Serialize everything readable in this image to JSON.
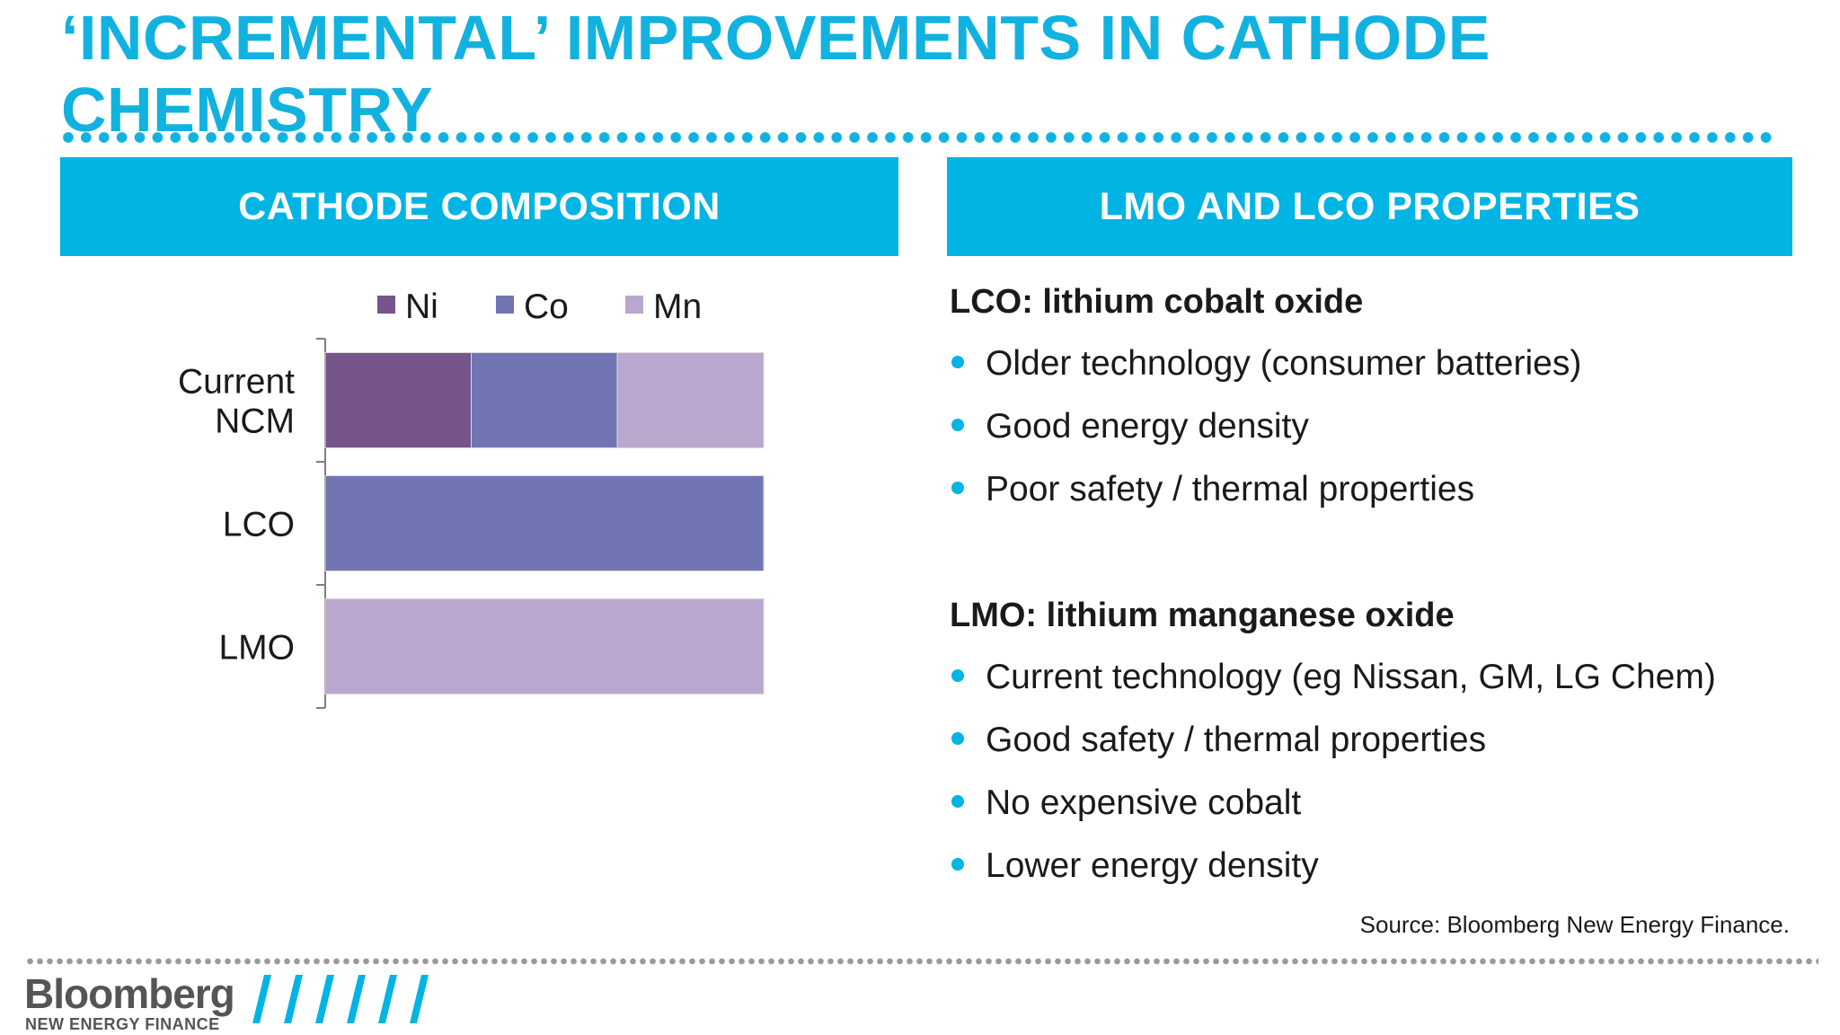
{
  "slide": {
    "title": "‘INCREMENTAL’ IMPROVEMENTS IN CATHODE CHEMISTRY"
  },
  "left_panel": {
    "header": "CATHODE COMPOSITION"
  },
  "right_panel": {
    "header": "LMO AND LCO PROPERTIES",
    "sections": [
      {
        "heading": "LCO: lithium cobalt oxide",
        "bullets": [
          "Older technology (consumer batteries)",
          "Good energy density",
          "Poor safety / thermal properties"
        ]
      },
      {
        "heading": "LMO: lithium manganese oxide",
        "bullets": [
          "Current technology (eg Nissan, GM, LG Chem)",
          "Good safety / thermal properties",
          "No expensive cobalt",
          "Lower energy density"
        ]
      }
    ]
  },
  "source": "Source: Bloomberg New Energy Finance.",
  "logo": {
    "name": "Bloomberg",
    "tagline": "NEW ENERGY FINANCE"
  },
  "colors": {
    "accent": "#00b4e4",
    "title": "#12b2e0",
    "ni": "#76548c",
    "co": "#7275b4",
    "mn": "#baa7cd"
  },
  "chart_data": {
    "type": "bar",
    "orientation": "horizontal",
    "stacked": true,
    "categories": [
      "Current NCM",
      "LCO",
      "LMO"
    ],
    "series": [
      {
        "name": "Ni",
        "color": "#76548c",
        "values": [
          33.3,
          0,
          0
        ]
      },
      {
        "name": "Co",
        "color": "#7275b4",
        "values": [
          33.3,
          100,
          0
        ]
      },
      {
        "name": "Mn",
        "color": "#baa7cd",
        "values": [
          33.4,
          0,
          100
        ]
      }
    ],
    "xlim": [
      0,
      100
    ],
    "legend": "top",
    "grid": false,
    "title": "",
    "xlabel": "",
    "ylabel": ""
  }
}
